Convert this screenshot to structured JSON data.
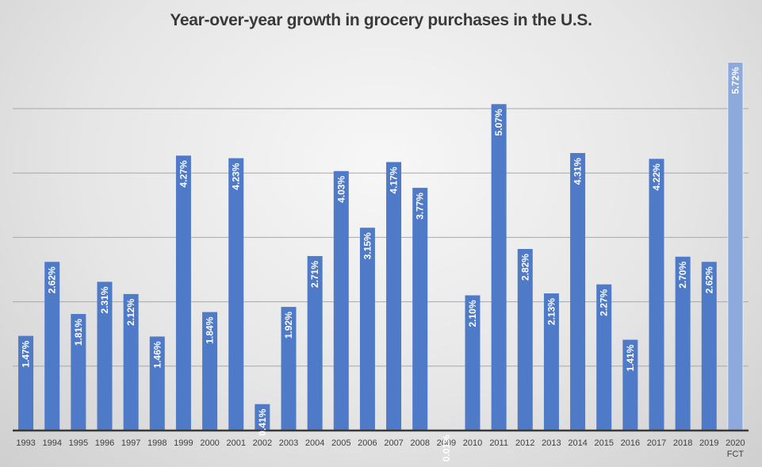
{
  "chart_data": {
    "type": "bar",
    "title": "Year-over-year growth in grocery purchases in the U.S.",
    "xlabel": "",
    "ylabel": "",
    "ylim": [
      0,
      6
    ],
    "grid": true,
    "gridlines": [
      1,
      2,
      3,
      4,
      5
    ],
    "y_tick_labels_visible": false,
    "legend": "none",
    "categories": [
      "1993",
      "1994",
      "1995",
      "1996",
      "1997",
      "1998",
      "1999",
      "2000",
      "2001",
      "2002",
      "2003",
      "2004",
      "2005",
      "2006",
      "2007",
      "2008",
      "2009",
      "2010",
      "2011",
      "2012",
      "2013",
      "2014",
      "2015",
      "2016",
      "2017",
      "2018",
      "2019",
      "2020 FCT"
    ],
    "category_lines": [
      [
        "1993"
      ],
      [
        "1994"
      ],
      [
        "1995"
      ],
      [
        "1996"
      ],
      [
        "1997"
      ],
      [
        "1998"
      ],
      [
        "1999"
      ],
      [
        "2000"
      ],
      [
        "2001"
      ],
      [
        "2002"
      ],
      [
        "2003"
      ],
      [
        "2004"
      ],
      [
        "2005"
      ],
      [
        "2006"
      ],
      [
        "2007"
      ],
      [
        "2008"
      ],
      [
        "2009"
      ],
      [
        "2010"
      ],
      [
        "2011"
      ],
      [
        "2012"
      ],
      [
        "2013"
      ],
      [
        "2014"
      ],
      [
        "2015"
      ],
      [
        "2016"
      ],
      [
        "2017"
      ],
      [
        "2018"
      ],
      [
        "2019"
      ],
      [
        "2020",
        "FCT"
      ]
    ],
    "values": [
      1.47,
      2.62,
      1.81,
      2.31,
      2.12,
      1.46,
      4.27,
      1.84,
      4.23,
      0.41,
      1.92,
      2.71,
      4.03,
      3.15,
      4.17,
      3.77,
      0.01,
      2.1,
      5.07,
      2.82,
      2.13,
      4.31,
      2.27,
      1.41,
      4.22,
      2.7,
      2.62,
      5.72
    ],
    "data_labels": [
      "1.47%",
      "2.62%",
      "1.81%",
      "2.31%",
      "2.12%",
      "1.46%",
      "4.27%",
      "1.84%",
      "4.23%",
      "0.41%",
      "1.92%",
      "2.71%",
      "4.03%",
      "3.15%",
      "4.17%",
      "3.77%",
      "0.01%",
      "2.10%",
      "5.07%",
      "2.82%",
      "2.13%",
      "4.31%",
      "2.27%",
      "1.41%",
      "4.22%",
      "2.70%",
      "2.62%",
      "5.72%"
    ],
    "forecast_index": 27,
    "colors": {
      "bar": "#4f7ac7",
      "forecast_bar": "#8eaadc",
      "grid": "#a8a8a8",
      "axis": "#3a3a3a"
    }
  }
}
